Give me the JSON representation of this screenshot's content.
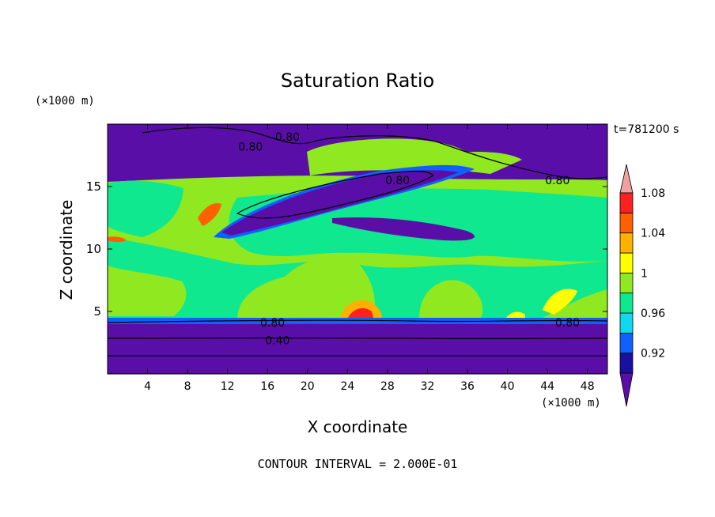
{
  "header": {
    "title": "Saturation Ratio",
    "timestamp": "t=781200 s"
  },
  "footer": {
    "contour_interval": "CONTOUR INTERVAL = 2.000E-01"
  },
  "chart_data": {
    "type": "heatmap",
    "title": "Saturation Ratio",
    "xlabel": "X coordinate",
    "ylabel": "Z coordinate",
    "x_unit": "(×1000 m)",
    "y_unit": "(×1000 m)",
    "xlim": [
      0,
      50
    ],
    "ylim": [
      0,
      20
    ],
    "x_ticks": [
      4,
      8,
      12,
      16,
      20,
      24,
      28,
      32,
      36,
      40,
      44,
      48
    ],
    "y_ticks": [
      5,
      10,
      15
    ],
    "colorbar": {
      "levels": [
        0.92,
        0.96,
        1,
        1.04,
        1.08
      ],
      "tick_labels": [
        "0.92",
        "0.96",
        "1",
        "1.04",
        "1.08"
      ],
      "colors": [
        "#5a0ea8",
        "#1a10a0",
        "#1060ff",
        "#10d8f0",
        "#10e890",
        "#90e820",
        "#ffff00",
        "#ffb000",
        "#ff6000",
        "#ff2020",
        "#f0a0a0"
      ]
    },
    "contour_labels": [
      {
        "text": "0.80",
        "x": 18,
        "y": 19
      },
      {
        "text": "0.80",
        "x": 14.3,
        "y": 18.2
      },
      {
        "text": "0.80",
        "x": 29,
        "y": 15.5
      },
      {
        "text": "0.80",
        "x": 45,
        "y": 15.5
      },
      {
        "text": "0.80",
        "x": 16.5,
        "y": 4.1
      },
      {
        "text": "0.40",
        "x": 17,
        "y": 2.7
      },
      {
        "text": "0.80",
        "x": 46,
        "y": 4.1
      }
    ]
  }
}
